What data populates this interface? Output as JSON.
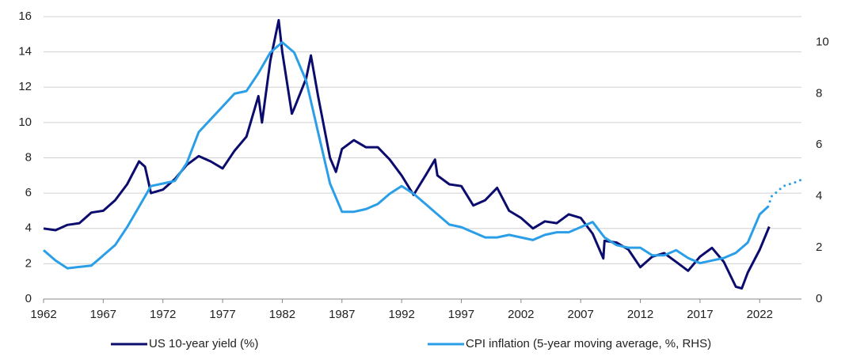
{
  "chart_data": {
    "type": "line",
    "xlim": [
      1962,
      2025.5
    ],
    "xticks": [
      1962,
      1967,
      1972,
      1977,
      1982,
      1987,
      1992,
      1997,
      2002,
      2007,
      2012,
      2017,
      2022
    ],
    "ylim": [
      0,
      16
    ],
    "yticks": [
      0,
      2,
      4,
      6,
      8,
      10,
      12,
      14,
      16
    ],
    "y2lim": [
      0,
      11
    ],
    "y2ticks": [
      0,
      2,
      4,
      6,
      8,
      10
    ],
    "grid": true,
    "legend": "bottom",
    "series": [
      {
        "name": "US 10-year yield (%)",
        "color": "#0c0c6e",
        "width": 3,
        "style": "solid",
        "x": [
          1962,
          1963,
          1964,
          1965,
          1966,
          1967,
          1968,
          1969,
          1970,
          1970.5,
          1971,
          1972,
          1973,
          1974,
          1975,
          1976,
          1977,
          1978,
          1979,
          1980,
          1980.3,
          1981,
          1981.7,
          1982,
          1982.8,
          1983,
          1984,
          1984.4,
          1985,
          1986,
          1986.5,
          1987,
          1988,
          1989,
          1990,
          1991,
          1992,
          1993,
          1994,
          1994.8,
          1995,
          1996,
          1997,
          1998,
          1999,
          2000,
          2001,
          2002,
          2003,
          2004,
          2005,
          2006,
          2007,
          2008,
          2008.9,
          2009,
          2010,
          2011,
          2012,
          2013,
          2014,
          2015,
          2016,
          2017,
          2018,
          2019,
          2020,
          2020.5,
          2021,
          2022,
          2022.8
        ],
        "values": [
          4.0,
          3.9,
          4.2,
          4.3,
          4.9,
          5.0,
          5.6,
          6.5,
          7.8,
          7.5,
          6.0,
          6.2,
          6.8,
          7.6,
          8.1,
          7.8,
          7.4,
          8.4,
          9.2,
          11.5,
          10.0,
          13.5,
          15.8,
          14.0,
          10.5,
          10.8,
          12.5,
          13.8,
          11.5,
          8.0,
          7.2,
          8.5,
          9.0,
          8.6,
          8.6,
          7.9,
          7.0,
          5.9,
          7.0,
          7.9,
          7.0,
          6.5,
          6.4,
          5.3,
          5.6,
          6.3,
          5.0,
          4.6,
          4.0,
          4.4,
          4.3,
          4.8,
          4.6,
          3.7,
          2.3,
          3.3,
          3.2,
          2.8,
          1.8,
          2.4,
          2.6,
          2.1,
          1.6,
          2.4,
          2.9,
          2.1,
          0.7,
          0.6,
          1.5,
          2.8,
          4.1
        ]
      },
      {
        "name": "CPI inflation (5-year moving average, %, RHS)",
        "color": "#2b9ee8",
        "width": 3,
        "style": "solid",
        "axis": "y2",
        "x": [
          1962,
          1963,
          1964,
          1965,
          1966,
          1967,
          1968,
          1969,
          1970,
          1971,
          1972,
          1973,
          1974,
          1975,
          1976,
          1977,
          1978,
          1979,
          1980,
          1981,
          1982,
          1983,
          1984,
          1985,
          1986,
          1987,
          1988,
          1989,
          1990,
          1991,
          1992,
          1993,
          1994,
          1995,
          1996,
          1997,
          1998,
          1999,
          2000,
          2001,
          2002,
          2003,
          2004,
          2005,
          2006,
          2007,
          2008,
          2009,
          2010,
          2011,
          2012,
          2013,
          2014,
          2015,
          2016,
          2017,
          2018,
          2019,
          2020,
          2021,
          2022,
          2022.7
        ],
        "values": [
          1.9,
          1.5,
          1.2,
          1.25,
          1.3,
          1.7,
          2.1,
          2.8,
          3.6,
          4.4,
          4.5,
          4.6,
          5.3,
          6.5,
          7.0,
          7.5,
          8.0,
          8.1,
          8.8,
          9.6,
          10.0,
          9.6,
          8.5,
          6.5,
          4.5,
          3.4,
          3.4,
          3.5,
          3.7,
          4.1,
          4.4,
          4.1,
          3.7,
          3.3,
          2.9,
          2.8,
          2.6,
          2.4,
          2.4,
          2.5,
          2.4,
          2.3,
          2.5,
          2.6,
          2.6,
          2.8,
          3.0,
          2.4,
          2.1,
          2.0,
          2.0,
          1.7,
          1.7,
          1.9,
          1.6,
          1.4,
          1.5,
          1.6,
          1.8,
          2.2,
          3.3,
          3.6
        ]
      },
      {
        "color": "#2b9ee8",
        "width": 3,
        "style": "dotted",
        "axis": "y2",
        "x": [
          2022.7,
          2023,
          2024,
          2025,
          2025.5
        ],
        "values": [
          3.6,
          4.0,
          4.4,
          4.55,
          4.65
        ]
      }
    ]
  }
}
